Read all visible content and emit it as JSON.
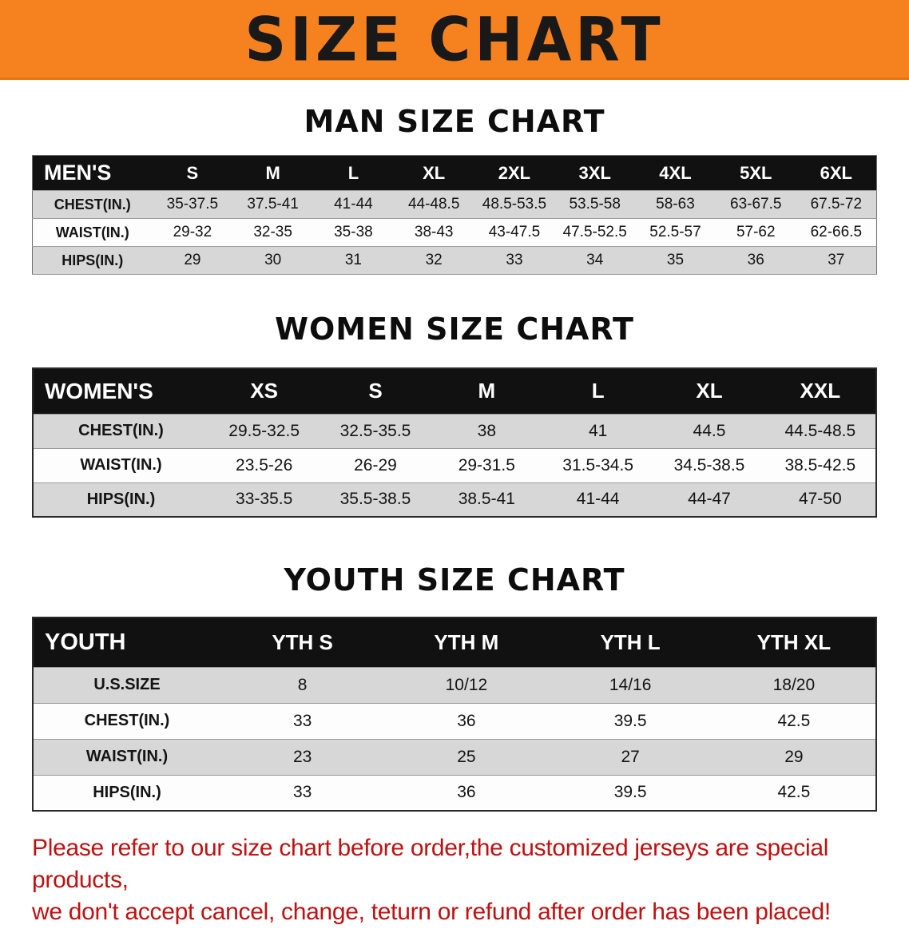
{
  "banner": {
    "title": "SIZE CHART",
    "bg_color": "#f5821f",
    "text_color": "#191919"
  },
  "sections": [
    {
      "id": "men",
      "heading": "MAN SIZE CHART",
      "table": {
        "corner_label": "MEN'S",
        "columns": [
          "S",
          "M",
          "L",
          "XL",
          "2XL",
          "3XL",
          "4XL",
          "5XL",
          "6XL"
        ],
        "rows": [
          {
            "label": "CHEST(IN.)",
            "values": [
              "35-37.5",
              "37.5-41",
              "41-44",
              "44-48.5",
              "48.5-53.5",
              "53.5-58",
              "58-63",
              "63-67.5",
              "67.5-72"
            ]
          },
          {
            "label": "WAIST(IN.)",
            "values": [
              "29-32",
              "32-35",
              "35-38",
              "38-43",
              "43-47.5",
              "47.5-52.5",
              "52.5-57",
              "57-62",
              "62-66.5"
            ]
          },
          {
            "label": "HIPS(IN.)",
            "values": [
              "29",
              "30",
              "31",
              "32",
              "33",
              "34",
              "35",
              "36",
              "37"
            ]
          }
        ]
      }
    },
    {
      "id": "women",
      "heading": "WOMEN SIZE CHART",
      "table": {
        "corner_label": "WOMEN'S",
        "columns": [
          "XS",
          "S",
          "M",
          "L",
          "XL",
          "XXL"
        ],
        "rows": [
          {
            "label": "CHEST(IN.)",
            "values": [
              "29.5-32.5",
              "32.5-35.5",
              "38",
              "41",
              "44.5",
              "44.5-48.5"
            ]
          },
          {
            "label": "WAIST(IN.)",
            "values": [
              "23.5-26",
              "26-29",
              "29-31.5",
              "31.5-34.5",
              "34.5-38.5",
              "38.5-42.5"
            ]
          },
          {
            "label": "HIPS(IN.)",
            "values": [
              "33-35.5",
              "35.5-38.5",
              "38.5-41",
              "41-44",
              "44-47",
              "47-50"
            ]
          }
        ]
      }
    },
    {
      "id": "youth",
      "heading": "YOUTH SIZE CHART",
      "table": {
        "corner_label": "YOUTH",
        "columns": [
          "YTH S",
          "YTH M",
          "YTH L",
          "YTH XL"
        ],
        "rows": [
          {
            "label": "U.S.SIZE",
            "values": [
              "8",
              "10/12",
              "14/16",
              "18/20"
            ]
          },
          {
            "label": "CHEST(IN.)",
            "values": [
              "33",
              "36",
              "39.5",
              "42.5"
            ]
          },
          {
            "label": "WAIST(IN.)",
            "values": [
              "23",
              "25",
              "27",
              "29"
            ]
          },
          {
            "label": "HIPS(IN.)",
            "values": [
              "33",
              "36",
              "39.5",
              "42.5"
            ]
          }
        ]
      }
    }
  ],
  "disclaimer": {
    "line1": "Please refer to our size chart before order,the customized jerseys are special products,",
    "line2": "we don't accept cancel, change, teturn or refund after order has been placed!",
    "color": "#c01010"
  }
}
